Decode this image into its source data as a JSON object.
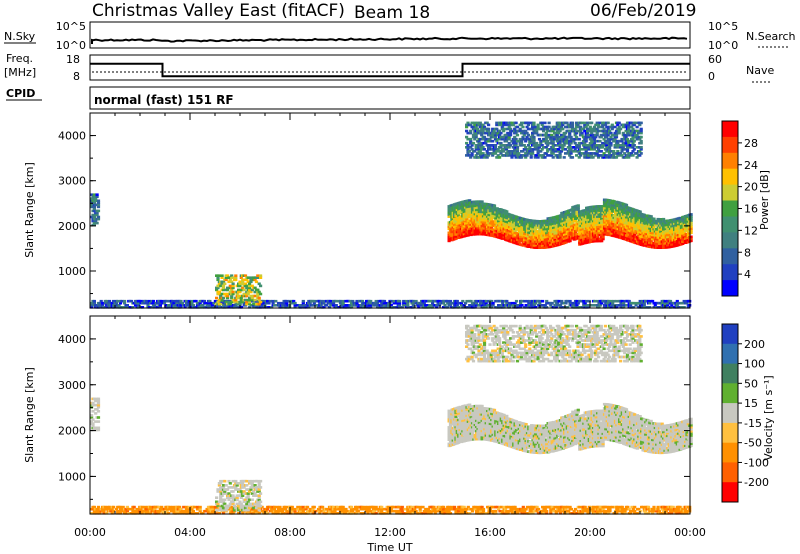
{
  "header": {
    "station": "Christmas Valley East (fitACF)",
    "beam": "Beam 18",
    "date": "06/Feb/2019"
  },
  "noise_panel": {
    "left_label": "N.Sky",
    "right_label": "N.Search",
    "left_ticks": [
      "10^5",
      "10^0"
    ],
    "right_ticks": [
      "10^5",
      "10^0"
    ]
  },
  "freq_panel": {
    "left_label_line1": "Freq.",
    "left_label_line2": "[MHz]",
    "right_label": "Nave",
    "left_ticks": [
      "18",
      "8"
    ],
    "right_ticks": [
      "60",
      "0"
    ]
  },
  "cpid": {
    "label": "CPID",
    "mode_text": "normal (fast) 151 RF"
  },
  "power_panel": {
    "ylabel": "Slant Range [km]",
    "yticks": [
      "4000",
      "3000",
      "2000",
      "1000"
    ],
    "cbar_label": "Power [dB]",
    "cbar_ticks": [
      "28",
      "24",
      "20",
      "16",
      "12",
      "8",
      "4"
    ],
    "cbar_colors": [
      "#ff0000",
      "#ff4000",
      "#ff8000",
      "#ffc000",
      "#cccc33",
      "#40a040",
      "#409070",
      "#408080",
      "#3060a0",
      "#2040c0",
      "#0000ff"
    ]
  },
  "velocity_panel": {
    "ylabel": "Slant Range [km]",
    "yticks": [
      "4000",
      "3000",
      "2000",
      "1000"
    ],
    "cbar_label": "Velocity [m s⁻¹]",
    "cbar_ticks": [
      "200",
      "100",
      "50",
      "15",
      "-15",
      "-50",
      "-100",
      "-200"
    ],
    "cbar_colors": [
      "#2040c0",
      "#3070b0",
      "#408060",
      "#60b030",
      "#c8c8c0",
      "#ffc040",
      "#ff9000",
      "#ff6000",
      "#ff0000"
    ]
  },
  "x_axis": {
    "label": "Time UT",
    "ticks": [
      "00:00",
      "04:00",
      "08:00",
      "12:00",
      "16:00",
      "20:00",
      "00:00"
    ]
  },
  "chart_data": {
    "type": "heatmap",
    "title": "Christmas Valley East (fitACF)  Beam 18  06/Feb/2019",
    "xlabel": "Time UT",
    "ylabel": "Slant Range [km]",
    "x_range_hours": [
      0,
      24
    ],
    "y_range_km": [
      180,
      4500
    ],
    "frequency_steps_MHz": [
      {
        "from_h": 0,
        "to_h": 2.9,
        "freq": 14.5
      },
      {
        "from_h": 2.9,
        "to_h": 14.9,
        "freq": 9.5
      },
      {
        "from_h": 14.9,
        "to_h": 24,
        "freq": 14.5
      }
    ],
    "power_colorbar_dB": [
      4,
      8,
      12,
      16,
      20,
      24,
      28
    ],
    "velocity_colorbar_ms": [
      -200,
      -100,
      -50,
      -15,
      15,
      50,
      100,
      200
    ],
    "echo_regions": [
      {
        "name": "near-range band",
        "t_start_h": 0,
        "t_end_h": 24,
        "range_km": [
          180,
          350
        ],
        "power_dB": 8,
        "velocity_ms": -30
      },
      {
        "name": "morning patch",
        "t_start_h": 5.0,
        "t_end_h": 6.8,
        "range_km": [
          250,
          900
        ],
        "power_dB": 18,
        "velocity_ms": 0
      },
      {
        "name": "early scatter",
        "t_start_h": 0,
        "t_end_h": 0.3,
        "range_km": [
          2000,
          2700
        ],
        "power_dB": 10,
        "velocity_ms": 0
      },
      {
        "name": "main scatter",
        "t_start_h": 14.3,
        "t_end_h": 24,
        "range_km": [
          1500,
          2600
        ],
        "power_dB": 22,
        "velocity_ms": 0
      },
      {
        "name": "far scatter",
        "t_start_h": 15.0,
        "t_end_h": 22.0,
        "range_km": [
          3500,
          4300
        ],
        "power_dB": 10,
        "velocity_ms": 0
      }
    ]
  }
}
